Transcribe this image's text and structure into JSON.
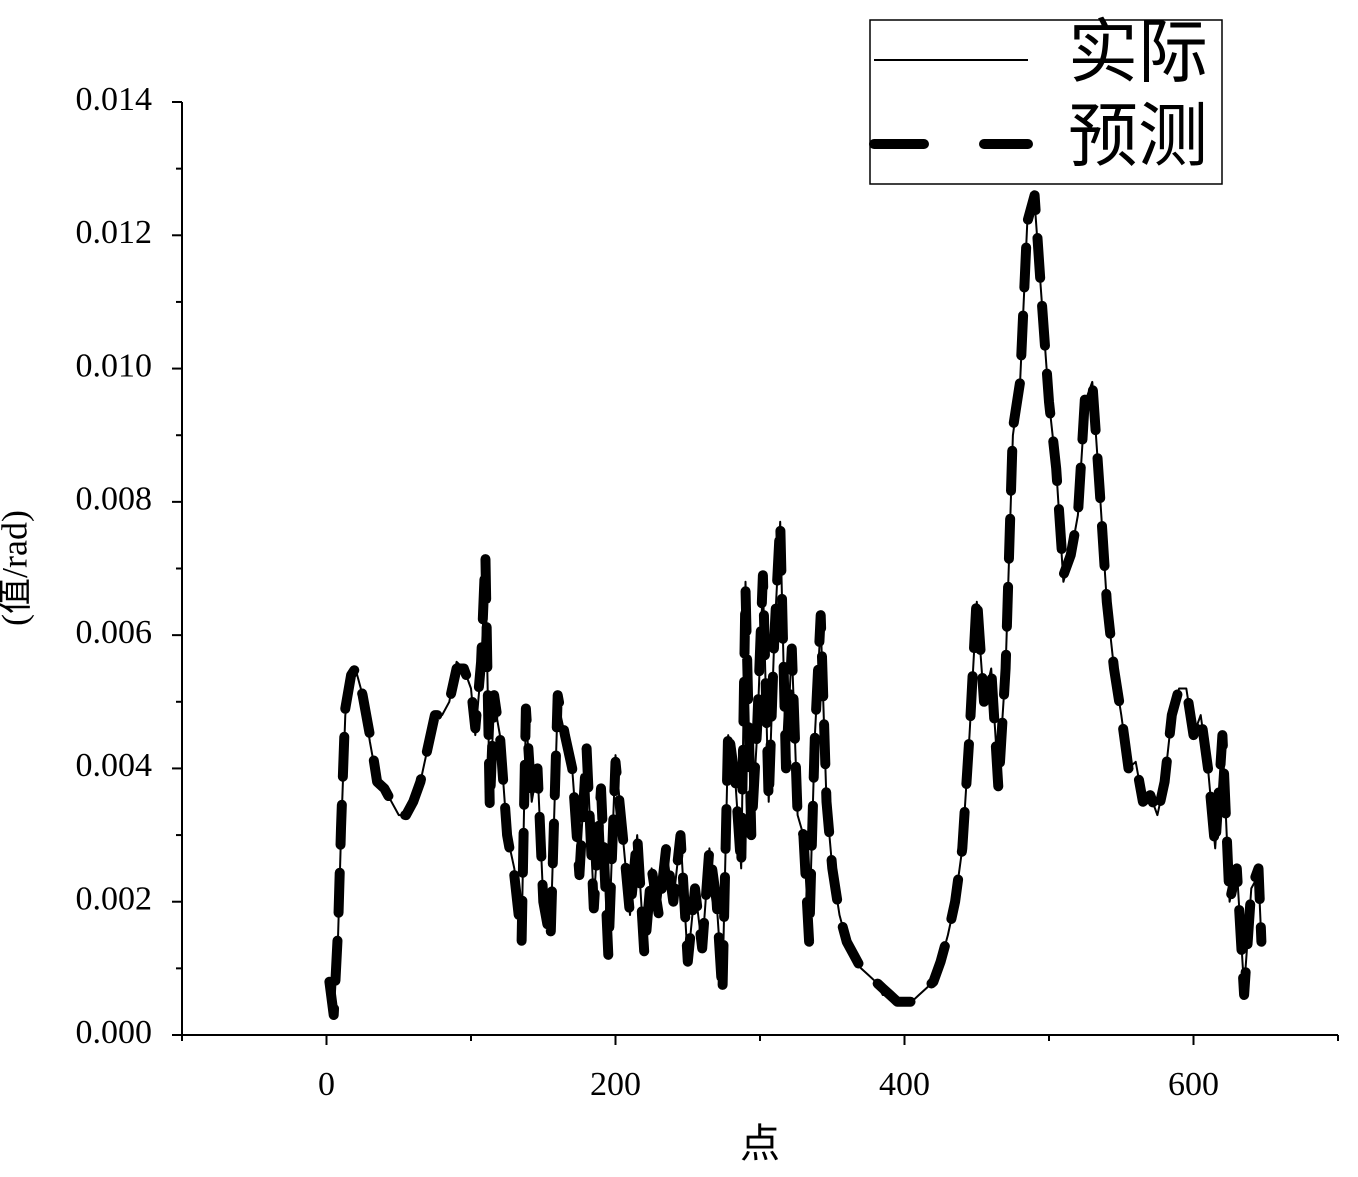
{
  "chart_data": {
    "type": "line",
    "xlabel": "点",
    "ylabel": "(值/rad)",
    "x": [
      2,
      5,
      8,
      10,
      13,
      17,
      20,
      25,
      30,
      35,
      40,
      45,
      50,
      55,
      60,
      65,
      70,
      75,
      80,
      85,
      90,
      95,
      100,
      103,
      107,
      110,
      113,
      116,
      120,
      125,
      130,
      135,
      138,
      142,
      146,
      150,
      155,
      160,
      165,
      170,
      175,
      180,
      185,
      190,
      195,
      200,
      205,
      210,
      215,
      220,
      225,
      230,
      235,
      240,
      245,
      250,
      255,
      260,
      265,
      270,
      274,
      278,
      283,
      287,
      290,
      294,
      298,
      302,
      306,
      310,
      314,
      318,
      322,
      326,
      330,
      334,
      338,
      342,
      346,
      350,
      355,
      360,
      365,
      370,
      375,
      380,
      385,
      390,
      395,
      400,
      405,
      410,
      415,
      420,
      425,
      430,
      435,
      440,
      445,
      450,
      455,
      460,
      465,
      470,
      475,
      480,
      485,
      490,
      495,
      500,
      505,
      510,
      515,
      520,
      525,
      530,
      535,
      540,
      545,
      550,
      555,
      560,
      565,
      570,
      575,
      580,
      585,
      590,
      595,
      600,
      605,
      610,
      615,
      620,
      625,
      630,
      635,
      640,
      645,
      647
    ],
    "series": [
      {
        "name": "实际",
        "color": "#000000",
        "style": "solid",
        "values": [
          0.0007,
          0.0003,
          0.0015,
          0.003,
          0.0048,
          0.0053,
          0.0055,
          0.0051,
          0.0044,
          0.0038,
          0.0037,
          0.0035,
          0.0033,
          0.0033,
          0.0035,
          0.0038,
          0.0043,
          0.0048,
          0.0048,
          0.005,
          0.0056,
          0.0055,
          0.0052,
          0.0045,
          0.0055,
          0.007,
          0.0035,
          0.005,
          0.0045,
          0.003,
          0.0025,
          0.0015,
          0.0048,
          0.0035,
          0.004,
          0.002,
          0.0015,
          0.005,
          0.0045,
          0.004,
          0.0025,
          0.0043,
          0.002,
          0.0037,
          0.0012,
          0.0042,
          0.003,
          0.0018,
          0.003,
          0.0012,
          0.0025,
          0.0018,
          0.0028,
          0.002,
          0.003,
          0.0011,
          0.0022,
          0.0013,
          0.0028,
          0.002,
          0.0007,
          0.0045,
          0.0038,
          0.0025,
          0.0068,
          0.003,
          0.0045,
          0.0068,
          0.0035,
          0.006,
          0.0077,
          0.004,
          0.0058,
          0.0033,
          0.003,
          0.0015,
          0.0045,
          0.0062,
          0.0035,
          0.0025,
          0.0018,
          0.0014,
          0.0012,
          0.001,
          0.0009,
          0.0008,
          0.0006,
          0.0006,
          0.0005,
          0.0005,
          0.0005,
          0.0006,
          0.0007,
          0.0008,
          0.0011,
          0.0015,
          0.002,
          0.0028,
          0.0045,
          0.0065,
          0.005,
          0.0055,
          0.0038,
          0.0055,
          0.009,
          0.0098,
          0.0122,
          0.0125,
          0.011,
          0.0095,
          0.0085,
          0.0068,
          0.0072,
          0.0078,
          0.0095,
          0.0098,
          0.0082,
          0.0065,
          0.0055,
          0.0048,
          0.004,
          0.0041,
          0.0035,
          0.0036,
          0.0033,
          0.0038,
          0.0048,
          0.0052,
          0.0052,
          0.0045,
          0.0048,
          0.004,
          0.0028,
          0.0045,
          0.002,
          0.0025,
          0.0007,
          0.0022,
          0.0024,
          0.0014
        ]
      },
      {
        "name": "预测",
        "color": "#000000",
        "style": "dashed",
        "values": [
          0.0008,
          0.0003,
          0.0016,
          0.0031,
          0.0049,
          0.0054,
          0.0055,
          0.0051,
          0.0045,
          0.0038,
          0.0037,
          0.0035,
          0.0033,
          0.0033,
          0.0035,
          0.0038,
          0.0043,
          0.0048,
          0.0048,
          0.005,
          0.0055,
          0.0055,
          0.0052,
          0.0046,
          0.0056,
          0.0072,
          0.0034,
          0.0051,
          0.0045,
          0.003,
          0.0024,
          0.0014,
          0.0049,
          0.0035,
          0.004,
          0.002,
          0.0014,
          0.0051,
          0.0045,
          0.004,
          0.0024,
          0.0043,
          0.0019,
          0.0037,
          0.0012,
          0.0041,
          0.003,
          0.0018,
          0.003,
          0.0012,
          0.0025,
          0.0018,
          0.0028,
          0.002,
          0.003,
          0.0011,
          0.0022,
          0.0013,
          0.0028,
          0.002,
          0.0006,
          0.0046,
          0.0038,
          0.0025,
          0.0067,
          0.003,
          0.0046,
          0.0069,
          0.0035,
          0.006,
          0.0077,
          0.004,
          0.0058,
          0.0033,
          0.003,
          0.0014,
          0.0045,
          0.0063,
          0.0035,
          0.0025,
          0.0018,
          0.0014,
          0.0012,
          0.001,
          0.0009,
          0.0008,
          0.0007,
          0.0006,
          0.0005,
          0.0005,
          0.0005,
          0.0006,
          0.0007,
          0.0008,
          0.0011,
          0.0015,
          0.002,
          0.0028,
          0.0045,
          0.0066,
          0.005,
          0.0055,
          0.0037,
          0.0055,
          0.0091,
          0.0098,
          0.0122,
          0.0126,
          0.011,
          0.0095,
          0.0085,
          0.0069,
          0.0072,
          0.0078,
          0.0096,
          0.0098,
          0.0082,
          0.0065,
          0.0055,
          0.0048,
          0.004,
          0.0041,
          0.0035,
          0.0036,
          0.0033,
          0.0038,
          0.0048,
          0.0052,
          0.0052,
          0.0045,
          0.0048,
          0.004,
          0.0028,
          0.0045,
          0.002,
          0.0025,
          0.0006,
          0.0022,
          0.0025,
          0.0014
        ]
      }
    ],
    "xlim": [
      -100,
      700
    ],
    "xticks": [
      0,
      200,
      400,
      600
    ],
    "x_minor_ticks": [
      -100,
      100,
      300,
      500,
      700
    ],
    "ylim": [
      0,
      0.014
    ],
    "yticks": [
      {
        "value": 0,
        "label": "0.000"
      },
      {
        "value": 0.002,
        "label": "0.002"
      },
      {
        "value": 0.004,
        "label": "0.004"
      },
      {
        "value": 0.006,
        "label": "0.006"
      },
      {
        "value": 0.008,
        "label": "0.008"
      },
      {
        "value": 0.01,
        "label": "0.010"
      },
      {
        "value": 0.012,
        "label": "0.012"
      },
      {
        "value": 0.014,
        "label": "0.014"
      }
    ],
    "y_minor_ticks": [
      0.001,
      0.003,
      0.005,
      0.007,
      0.009,
      0.011,
      0.013
    ],
    "grid": false,
    "legend": "upper right"
  }
}
